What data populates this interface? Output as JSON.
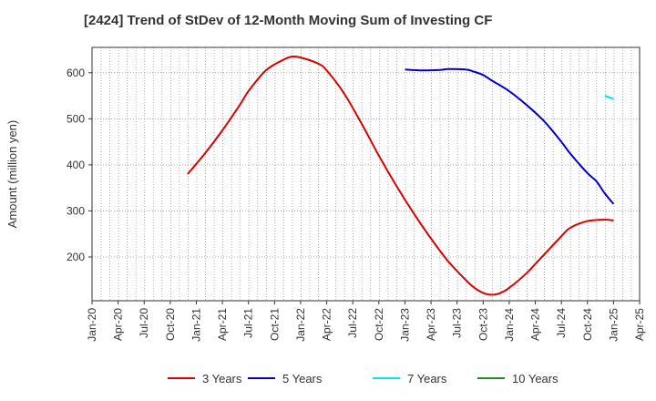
{
  "chart_data": {
    "type": "line",
    "title": "[2424]  Trend of StDev of 12-Month Moving Sum of Investing CF",
    "ylabel": "Amount (million yen)",
    "xlabel": "",
    "ylim": [
      105,
      655
    ],
    "yticks": [
      200,
      300,
      400,
      500,
      600
    ],
    "x_ticks": [
      "Jan-20",
      "Apr-20",
      "Jul-20",
      "Oct-20",
      "Jan-21",
      "Apr-21",
      "Jul-21",
      "Oct-21",
      "Jan-22",
      "Apr-22",
      "Jul-22",
      "Oct-22",
      "Jan-23",
      "Apr-23",
      "Jul-23",
      "Oct-23",
      "Jan-24",
      "Apr-24",
      "Jul-24",
      "Oct-24",
      "Jan-25",
      "Apr-25"
    ],
    "grid": true,
    "legend_position": "bottom",
    "series": [
      {
        "name": "3 Years",
        "color": "#dd0000",
        "points": [
          [
            "Dec-20",
            380
          ],
          [
            "Feb-21",
            425
          ],
          [
            "Apr-21",
            475
          ],
          [
            "Jun-21",
            530
          ],
          [
            "Jul-21",
            560
          ],
          [
            "Sep-21",
            605
          ],
          [
            "Nov-21",
            628
          ],
          [
            "Dec-21",
            635
          ],
          [
            "Jan-22",
            633
          ],
          [
            "Mar-22",
            620
          ],
          [
            "Apr-22",
            605
          ],
          [
            "Jun-22",
            555
          ],
          [
            "Aug-22",
            490
          ],
          [
            "Oct-22",
            420
          ],
          [
            "Dec-22",
            355
          ],
          [
            "Feb-23",
            295
          ],
          [
            "Apr-23",
            240
          ],
          [
            "Jun-23",
            190
          ],
          [
            "Aug-23",
            150
          ],
          [
            "Sep-23",
            133
          ],
          [
            "Oct-23",
            122
          ],
          [
            "Nov-23",
            118
          ],
          [
            "Dec-23",
            122
          ],
          [
            "Jan-24",
            133
          ],
          [
            "Mar-24",
            165
          ],
          [
            "May-24",
            205
          ],
          [
            "Jul-24",
            245
          ],
          [
            "Aug-24",
            263
          ],
          [
            "Oct-24",
            278
          ],
          [
            "Dec-24",
            281
          ],
          [
            "Jan-25",
            279
          ]
        ]
      },
      {
        "name": "5 Years",
        "color": "#0000cc",
        "points": [
          [
            "Jan-23",
            607
          ],
          [
            "Mar-23",
            605
          ],
          [
            "May-23",
            606
          ],
          [
            "Jun-23",
            608
          ],
          [
            "Aug-23",
            607
          ],
          [
            "Sep-23",
            602
          ],
          [
            "Oct-23",
            595
          ],
          [
            "Nov-23",
            583
          ],
          [
            "Jan-24",
            560
          ],
          [
            "Mar-24",
            530
          ],
          [
            "May-24",
            495
          ],
          [
            "Jul-24",
            450
          ],
          [
            "Aug-24",
            425
          ],
          [
            "Oct-24",
            382
          ],
          [
            "Nov-24",
            365
          ],
          [
            "Dec-24",
            338
          ],
          [
            "Jan-25",
            315
          ]
        ]
      },
      {
        "name": "7 Years",
        "color": "#00e5ee",
        "points": [
          [
            "Dec-24",
            550
          ],
          [
            "Jan-25",
            543
          ]
        ]
      },
      {
        "name": "10 Years",
        "color": "#228b22",
        "points": []
      }
    ]
  }
}
